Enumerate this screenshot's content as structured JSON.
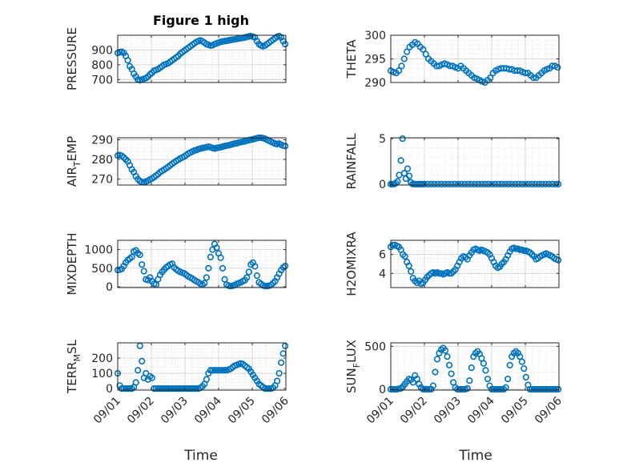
{
  "figure": {
    "title": "Figure 1 high",
    "xlabel": "Time",
    "x_ticklabels": [
      "09/01",
      "09/02",
      "09/03",
      "09/04",
      "09/05",
      "09/06"
    ]
  },
  "chart_data": [
    {
      "type": "scatter",
      "ylabel": "PRESSURE",
      "ylim": [
        680,
        1000
      ],
      "yticks": [
        700,
        800,
        900
      ],
      "x": [
        0.0,
        0.06,
        0.12,
        0.18,
        0.24,
        0.3,
        0.36,
        0.42,
        0.48,
        0.54,
        0.6,
        0.66,
        0.72,
        0.78,
        0.84,
        0.9,
        0.96,
        1.02,
        1.08,
        1.14,
        1.2,
        1.26,
        1.32,
        1.38,
        1.44,
        1.5,
        1.56,
        1.62,
        1.68,
        1.74,
        1.8,
        1.86,
        1.92,
        1.98,
        2.04,
        2.1,
        2.16,
        2.22,
        2.28,
        2.34,
        2.4,
        2.46,
        2.52,
        2.58,
        2.64,
        2.7,
        2.76,
        2.82,
        2.88,
        2.94,
        3.0,
        3.06,
        3.12,
        3.18,
        3.24,
        3.3,
        3.36,
        3.42,
        3.48,
        3.54,
        3.6,
        3.66,
        3.72,
        3.78,
        3.84,
        3.9,
        3.96,
        4.02,
        4.08,
        4.14,
        4.2,
        4.26,
        4.32,
        4.38,
        4.44,
        4.5,
        4.56,
        4.62,
        4.68,
        4.74,
        4.8,
        4.86,
        4.92,
        4.98
      ],
      "y": [
        880,
        885,
        888,
        880,
        860,
        830,
        790,
        770,
        740,
        720,
        700,
        695,
        700,
        705,
        710,
        720,
        735,
        745,
        760,
        765,
        770,
        780,
        790,
        800,
        805,
        810,
        820,
        830,
        840,
        850,
        860,
        875,
        885,
        895,
        905,
        915,
        925,
        935,
        945,
        955,
        960,
        965,
        958,
        950,
        940,
        935,
        930,
        932,
        940,
        945,
        950,
        955,
        958,
        960,
        962,
        965,
        968,
        970,
        972,
        975,
        978,
        980,
        982,
        985,
        988,
        992,
        995,
        990,
        985,
        960,
        940,
        930,
        925,
        930,
        940,
        950,
        960,
        970,
        980,
        990,
        995,
        985,
        960,
        940
      ],
      "series_color": "#0072BD"
    },
    {
      "type": "scatter",
      "ylabel": "THETA",
      "ylim": [
        290,
        300
      ],
      "yticks": [
        290,
        295,
        300
      ],
      "x": [
        0.0,
        0.08,
        0.16,
        0.24,
        0.32,
        0.4,
        0.48,
        0.56,
        0.64,
        0.72,
        0.8,
        0.88,
        0.96,
        1.04,
        1.12,
        1.2,
        1.28,
        1.36,
        1.44,
        1.52,
        1.6,
        1.68,
        1.76,
        1.84,
        1.92,
        2.0,
        2.08,
        2.16,
        2.24,
        2.32,
        2.4,
        2.48,
        2.56,
        2.64,
        2.72,
        2.8,
        2.88,
        2.96,
        3.04,
        3.12,
        3.2,
        3.28,
        3.36,
        3.44,
        3.52,
        3.6,
        3.68,
        3.76,
        3.84,
        3.92,
        4.0,
        4.08,
        4.16,
        4.24,
        4.32,
        4.4,
        4.48,
        4.56,
        4.64,
        4.72,
        4.8,
        4.88,
        4.96
      ],
      "y": [
        292.5,
        292.2,
        292.0,
        292.5,
        293.5,
        295.0,
        296.5,
        297.5,
        298.0,
        298.5,
        298.2,
        297.5,
        297.0,
        296.0,
        295.0,
        294.5,
        294.0,
        293.5,
        293.5,
        293.8,
        294.0,
        293.8,
        293.5,
        293.5,
        293.2,
        293.0,
        293.5,
        293.0,
        292.5,
        292.0,
        291.5,
        291.0,
        290.8,
        290.5,
        290.2,
        290.0,
        290.5,
        291.0,
        292.0,
        292.5,
        292.8,
        293.0,
        293.0,
        293.0,
        292.8,
        292.8,
        292.5,
        292.5,
        292.5,
        292.2,
        292.0,
        292.0,
        291.5,
        291.0,
        291.0,
        291.5,
        292.0,
        292.5,
        292.8,
        293.0,
        293.5,
        293.5,
        293.2
      ],
      "series_color": "#0072BD"
    },
    {
      "type": "scatter",
      "ylabel": "AIR_TEMP",
      "ylim": [
        267,
        291
      ],
      "yticks": [
        270,
        280,
        290
      ],
      "x": [
        0.0,
        0.06,
        0.12,
        0.18,
        0.24,
        0.3,
        0.36,
        0.42,
        0.48,
        0.54,
        0.6,
        0.66,
        0.72,
        0.78,
        0.84,
        0.9,
        0.96,
        1.02,
        1.08,
        1.14,
        1.2,
        1.26,
        1.32,
        1.38,
        1.44,
        1.5,
        1.56,
        1.62,
        1.68,
        1.74,
        1.8,
        1.86,
        1.92,
        1.98,
        2.04,
        2.1,
        2.16,
        2.22,
        2.28,
        2.34,
        2.4,
        2.46,
        2.52,
        2.58,
        2.64,
        2.7,
        2.76,
        2.82,
        2.88,
        2.94,
        3.0,
        3.06,
        3.12,
        3.18,
        3.24,
        3.3,
        3.36,
        3.42,
        3.48,
        3.54,
        3.6,
        3.66,
        3.72,
        3.78,
        3.84,
        3.9,
        3.96,
        4.02,
        4.08,
        4.14,
        4.2,
        4.26,
        4.32,
        4.38,
        4.44,
        4.5,
        4.56,
        4.62,
        4.68,
        4.74,
        4.8,
        4.86,
        4.92,
        4.98
      ],
      "y": [
        282,
        282.2,
        281.8,
        281,
        280,
        279,
        277,
        275,
        273.5,
        271.5,
        270,
        269,
        268.5,
        268.5,
        268.8,
        269.2,
        269.8,
        270.3,
        271,
        271.8,
        272.5,
        273.5,
        274.2,
        274.8,
        275.5,
        276.2,
        277,
        277.8,
        278.5,
        279.2,
        279.8,
        280.5,
        281,
        281.5,
        282.2,
        283,
        283.5,
        284,
        284.5,
        284.8,
        285.2,
        285.5,
        285.8,
        286,
        286.2,
        286.5,
        286.2,
        285.8,
        285.5,
        285.8,
        286,
        286.2,
        286.5,
        286.8,
        287,
        287.2,
        287.5,
        287.8,
        288,
        288.2,
        288.5,
        288.8,
        289,
        289.2,
        289.5,
        289.8,
        290,
        290.2,
        290.5,
        290.8,
        291,
        291,
        290.8,
        290.5,
        290,
        289.5,
        289,
        288.5,
        288,
        287.8,
        288,
        287.5,
        287,
        286.8
      ],
      "series_color": "#0072BD"
    },
    {
      "type": "scatter",
      "ylabel": "RAINFALL",
      "ylim": [
        -0.1,
        5.1
      ],
      "yticks": [
        0,
        5
      ],
      "x": [
        0.0,
        0.05,
        0.1,
        0.15,
        0.2,
        0.25,
        0.3,
        0.35,
        0.4,
        0.45,
        0.5,
        0.55,
        0.6,
        0.65,
        0.7,
        0.75,
        0.8,
        0.85,
        0.9,
        0.95,
        1.0,
        1.1,
        1.2,
        1.3,
        1.4,
        1.5,
        1.6,
        1.7,
        1.8,
        1.9,
        2.0,
        2.1,
        2.2,
        2.3,
        2.4,
        2.5,
        2.6,
        2.7,
        2.8,
        2.9,
        3.0,
        3.1,
        3.2,
        3.3,
        3.4,
        3.5,
        3.6,
        3.7,
        3.8,
        3.9,
        4.0,
        4.1,
        4.2,
        4.3,
        4.4,
        4.5,
        4.6,
        4.7,
        4.8,
        4.9,
        4.98
      ],
      "y": [
        0,
        0,
        0,
        0.1,
        0.3,
        1.0,
        2.6,
        5.0,
        1.2,
        0.6,
        1.7,
        0.9,
        0.2,
        0,
        0,
        0,
        0,
        0,
        0,
        0,
        0,
        0,
        0,
        0,
        0,
        0,
        0,
        0,
        0,
        0,
        0,
        0,
        0,
        0,
        0,
        0,
        0,
        0,
        0,
        0,
        0,
        0,
        0,
        0,
        0,
        0,
        0,
        0,
        0,
        0,
        0,
        0,
        0,
        0,
        0,
        0,
        0,
        0,
        0,
        0,
        0
      ],
      "series_color": "#0072BD"
    },
    {
      "type": "scatter",
      "ylabel": "MIXDEPTH",
      "ylim": [
        -20,
        1250
      ],
      "yticks": [
        0,
        500,
        1000
      ],
      "x": [
        0.0,
        0.06,
        0.12,
        0.18,
        0.24,
        0.3,
        0.36,
        0.42,
        0.48,
        0.54,
        0.6,
        0.66,
        0.72,
        0.78,
        0.84,
        0.9,
        0.96,
        1.02,
        1.08,
        1.14,
        1.2,
        1.26,
        1.32,
        1.38,
        1.44,
        1.5,
        1.56,
        1.62,
        1.68,
        1.74,
        1.8,
        1.86,
        1.92,
        1.98,
        2.04,
        2.1,
        2.16,
        2.22,
        2.28,
        2.34,
        2.4,
        2.46,
        2.52,
        2.58,
        2.64,
        2.7,
        2.76,
        2.82,
        2.88,
        2.94,
        3.0,
        3.06,
        3.12,
        3.18,
        3.24,
        3.3,
        3.36,
        3.42,
        3.48,
        3.54,
        3.6,
        3.66,
        3.72,
        3.78,
        3.84,
        3.9,
        3.96,
        4.02,
        4.08,
        4.14,
        4.2,
        4.26,
        4.32,
        4.38,
        4.44,
        4.5,
        4.56,
        4.62,
        4.68,
        4.74,
        4.8,
        4.86,
        4.92,
        4.98
      ],
      "y": [
        450,
        460,
        480,
        560,
        650,
        720,
        760,
        800,
        950,
        980,
        900,
        860,
        600,
        420,
        200,
        180,
        250,
        150,
        80,
        60,
        200,
        320,
        400,
        460,
        520,
        560,
        600,
        620,
        520,
        470,
        430,
        400,
        380,
        360,
        320,
        280,
        250,
        220,
        180,
        150,
        120,
        80,
        60,
        100,
        250,
        500,
        800,
        1000,
        1150,
        1050,
        900,
        780,
        500,
        200,
        60,
        30,
        20,
        30,
        50,
        80,
        100,
        120,
        150,
        180,
        250,
        400,
        600,
        650,
        550,
        300,
        120,
        80,
        40,
        20,
        20,
        30,
        50,
        100,
        150,
        250,
        350,
        450,
        520,
        560
      ],
      "series_color": "#0072BD"
    },
    {
      "type": "scatter",
      "ylabel": "H2OMIXRA",
      "ylim": [
        2.5,
        7.5
      ],
      "yticks": [
        4,
        6
      ],
      "x": [
        0.0,
        0.06,
        0.12,
        0.18,
        0.24,
        0.3,
        0.36,
        0.42,
        0.48,
        0.54,
        0.6,
        0.66,
        0.72,
        0.78,
        0.84,
        0.9,
        0.96,
        1.02,
        1.08,
        1.14,
        1.2,
        1.26,
        1.32,
        1.38,
        1.44,
        1.5,
        1.56,
        1.62,
        1.68,
        1.74,
        1.8,
        1.86,
        1.92,
        1.98,
        2.04,
        2.1,
        2.16,
        2.22,
        2.28,
        2.34,
        2.4,
        2.46,
        2.52,
        2.58,
        2.64,
        2.7,
        2.76,
        2.82,
        2.88,
        2.94,
        3.0,
        3.06,
        3.12,
        3.18,
        3.24,
        3.3,
        3.36,
        3.42,
        3.48,
        3.54,
        3.6,
        3.66,
        3.72,
        3.78,
        3.84,
        3.9,
        3.96,
        4.02,
        4.08,
        4.14,
        4.2,
        4.26,
        4.32,
        4.38,
        4.44,
        4.5,
        4.56,
        4.62,
        4.68,
        4.74,
        4.8,
        4.86,
        4.92,
        4.98
      ],
      "y": [
        6.8,
        7.0,
        7.0,
        6.9,
        6.8,
        6.5,
        6.0,
        5.8,
        5.2,
        4.8,
        4.2,
        3.5,
        3.2,
        3.0,
        3.2,
        2.9,
        3.0,
        3.3,
        3.6,
        3.8,
        4.0,
        4.1,
        4.0,
        4.1,
        4.0,
        4.0,
        3.9,
        4.0,
        4.1,
        4.0,
        4.0,
        4.2,
        4.4,
        4.8,
        5.2,
        5.6,
        5.8,
        5.7,
        5.5,
        5.9,
        6.2,
        6.5,
        6.6,
        6.5,
        6.4,
        6.5,
        6.4,
        6.3,
        6.2,
        6.0,
        5.6,
        5.2,
        4.8,
        4.6,
        4.7,
        5.0,
        5.2,
        5.5,
        5.9,
        6.3,
        6.6,
        6.7,
        6.6,
        6.6,
        6.5,
        6.5,
        6.4,
        6.4,
        6.3,
        6.2,
        6.0,
        5.8,
        5.5,
        5.6,
        5.8,
        5.9,
        6.0,
        6.1,
        6.0,
        5.9,
        5.8,
        5.6,
        5.5,
        5.4
      ],
      "series_color": "#0072BD"
    },
    {
      "type": "scatter",
      "ylabel": "TERR_MSL",
      "ylim": [
        -10,
        300
      ],
      "yticks": [
        0,
        100,
        200
      ],
      "x": [
        0.0,
        0.06,
        0.12,
        0.18,
        0.24,
        0.3,
        0.36,
        0.42,
        0.48,
        0.54,
        0.6,
        0.66,
        0.72,
        0.78,
        0.84,
        0.9,
        0.96,
        1.02,
        1.08,
        1.14,
        1.2,
        1.26,
        1.32,
        1.38,
        1.44,
        1.5,
        1.56,
        1.62,
        1.68,
        1.74,
        1.8,
        1.86,
        1.92,
        1.98,
        2.04,
        2.1,
        2.16,
        2.22,
        2.28,
        2.34,
        2.4,
        2.46,
        2.52,
        2.58,
        2.64,
        2.7,
        2.76,
        2.82,
        2.88,
        2.94,
        3.0,
        3.06,
        3.12,
        3.18,
        3.24,
        3.3,
        3.36,
        3.42,
        3.48,
        3.54,
        3.6,
        3.66,
        3.72,
        3.78,
        3.84,
        3.9,
        3.96,
        4.02,
        4.08,
        4.14,
        4.2,
        4.26,
        4.32,
        4.38,
        4.44,
        4.5,
        4.56,
        4.62,
        4.68,
        4.74,
        4.8,
        4.86,
        4.92,
        4.98
      ],
      "y": [
        100,
        20,
        0,
        0,
        0,
        0,
        0,
        0,
        10,
        40,
        120,
        280,
        180,
        70,
        100,
        60,
        80,
        70,
        0,
        0,
        0,
        0,
        0,
        0,
        0,
        0,
        0,
        0,
        0,
        0,
        0,
        0,
        0,
        0,
        0,
        0,
        0,
        0,
        0,
        0,
        0,
        5,
        15,
        30,
        60,
        100,
        120,
        120,
        120,
        120,
        120,
        120,
        120,
        120,
        120,
        125,
        130,
        140,
        150,
        155,
        160,
        165,
        160,
        150,
        140,
        130,
        110,
        90,
        70,
        50,
        30,
        20,
        10,
        0,
        0,
        0,
        0,
        5,
        20,
        50,
        100,
        170,
        230,
        280
      ],
      "series_color": "#0072BD"
    },
    {
      "type": "scatter",
      "ylabel": "SUN_FLUX",
      "ylim": [
        -10,
        540
      ],
      "yticks": [
        0,
        500
      ],
      "x": [
        0.0,
        0.06,
        0.12,
        0.18,
        0.24,
        0.3,
        0.36,
        0.42,
        0.48,
        0.54,
        0.6,
        0.66,
        0.72,
        0.78,
        0.84,
        0.9,
        0.96,
        1.02,
        1.08,
        1.14,
        1.2,
        1.26,
        1.32,
        1.38,
        1.44,
        1.5,
        1.56,
        1.62,
        1.68,
        1.74,
        1.8,
        1.86,
        1.92,
        1.98,
        2.04,
        2.1,
        2.16,
        2.22,
        2.28,
        2.34,
        2.4,
        2.46,
        2.52,
        2.58,
        2.64,
        2.7,
        2.76,
        2.82,
        2.88,
        2.94,
        3.0,
        3.06,
        3.12,
        3.18,
        3.24,
        3.3,
        3.36,
        3.42,
        3.48,
        3.54,
        3.6,
        3.66,
        3.72,
        3.78,
        3.84,
        3.9,
        3.96,
        4.02,
        4.08,
        4.14,
        4.2,
        4.26,
        4.32,
        4.38,
        4.44,
        4.5,
        4.56,
        4.62,
        4.68,
        4.74,
        4.8,
        4.86,
        4.92,
        4.98
      ],
      "y": [
        0,
        0,
        0,
        0,
        5,
        10,
        30,
        60,
        90,
        120,
        110,
        80,
        160,
        120,
        60,
        20,
        0,
        0,
        0,
        0,
        0,
        40,
        200,
        350,
        420,
        460,
        480,
        450,
        380,
        280,
        180,
        80,
        20,
        0,
        0,
        0,
        0,
        0,
        10,
        100,
        250,
        380,
        420,
        440,
        410,
        360,
        300,
        220,
        120,
        40,
        0,
        0,
        0,
        0,
        0,
        0,
        0,
        20,
        120,
        280,
        380,
        420,
        440,
        420,
        380,
        320,
        240,
        140,
        50,
        0,
        0,
        0,
        0,
        0,
        0,
        0,
        0,
        0,
        0,
        0,
        0,
        0,
        0,
        0
      ],
      "series_color": "#0072BD"
    }
  ]
}
